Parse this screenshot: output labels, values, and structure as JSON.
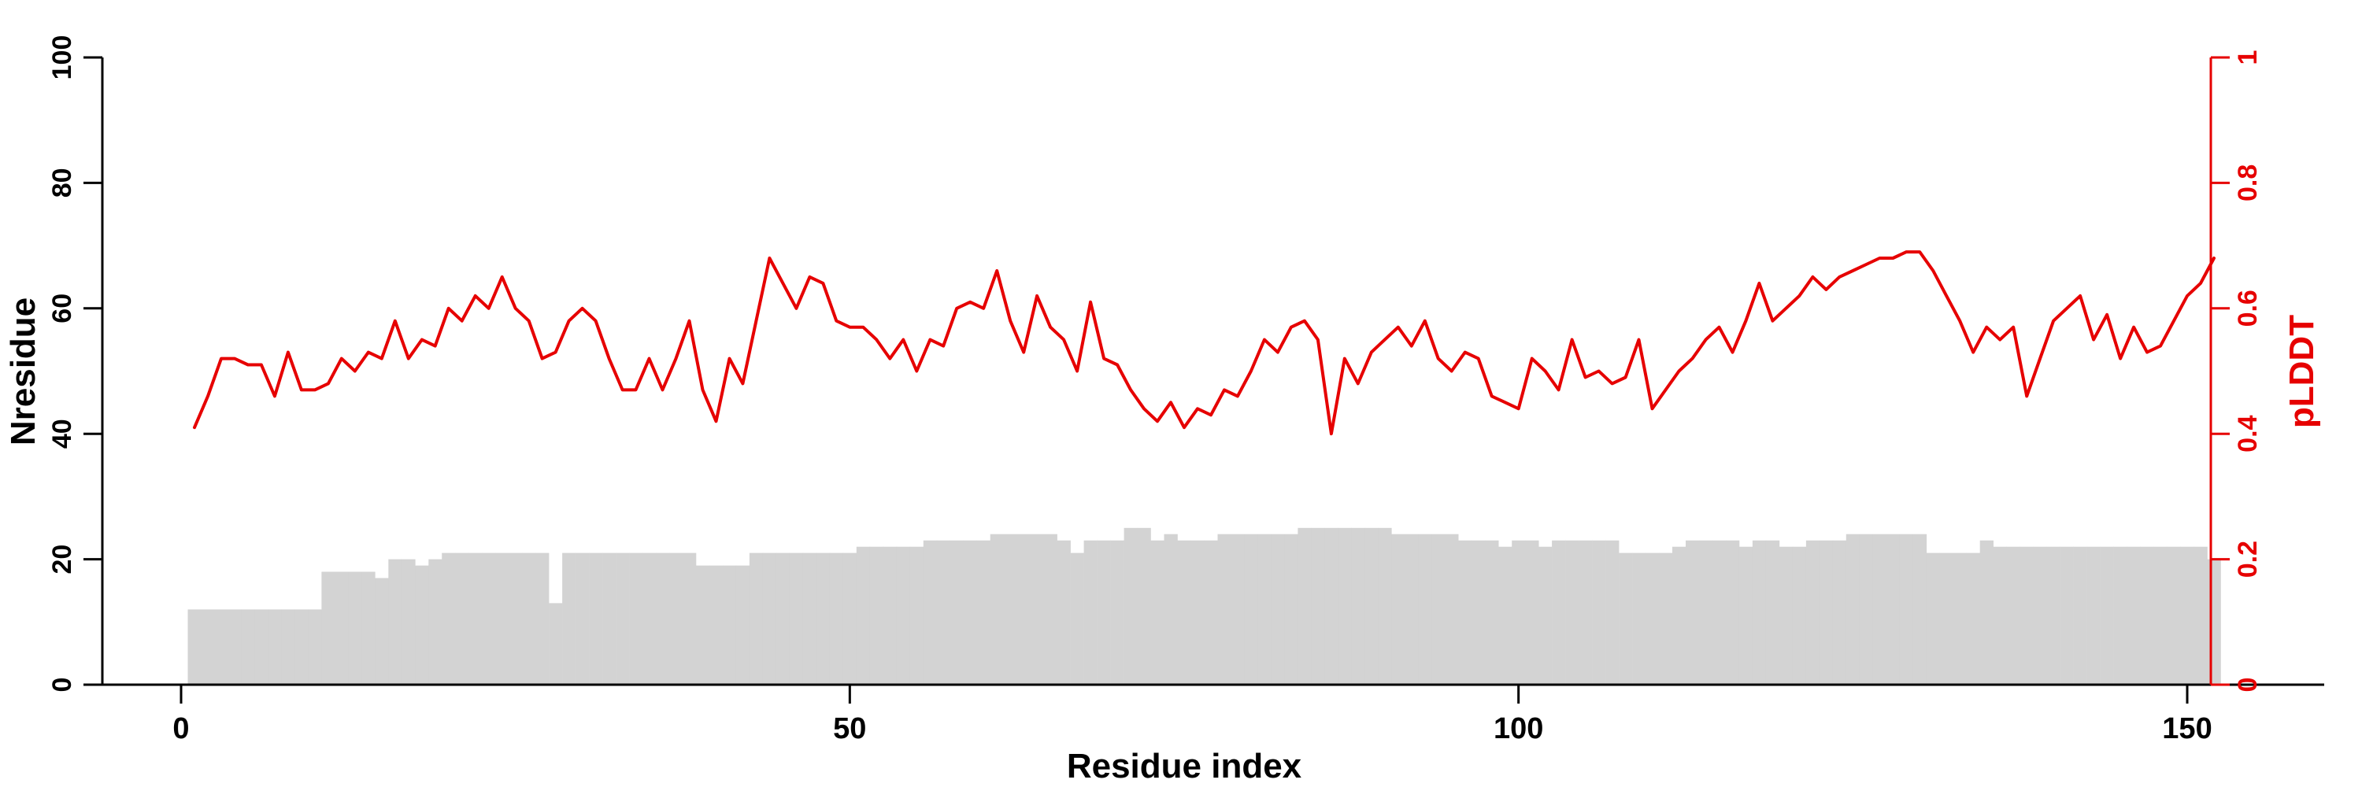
{
  "figure": {
    "background": "#ffffff"
  },
  "chart_data": {
    "type": "line+bar",
    "title": "",
    "xlabel": "Residue index",
    "ylabel_left": "Nresidue",
    "ylabel_right": "pLDDT",
    "xlim": [
      0,
      155
    ],
    "ylim_left": [
      0,
      100
    ],
    "ylim_right": [
      0,
      1
    ],
    "x_ticks": [
      0,
      50,
      100,
      150
    ],
    "left_ticks": [
      0,
      20,
      40,
      60,
      80,
      100
    ],
    "right_ticks": [
      0,
      0.2,
      0.4,
      0.6,
      0.8,
      1
    ],
    "grid": false,
    "legend": "none",
    "colors": {
      "bar_fill": "#d3d3d3",
      "line": "#e60000",
      "left_axis": "#000000",
      "right_axis": "#e60000"
    },
    "x_start": 1,
    "series": [
      {
        "name": "Nresidue",
        "type": "bar",
        "axis": "left",
        "values": [
          12,
          12,
          12,
          12,
          12,
          12,
          12,
          12,
          12,
          12,
          18,
          18,
          18,
          18,
          17,
          20,
          20,
          19,
          20,
          21,
          21,
          21,
          21,
          21,
          21,
          21,
          21,
          13,
          21,
          21,
          21,
          21,
          21,
          21,
          21,
          21,
          21,
          21,
          19,
          19,
          19,
          19,
          21,
          21,
          21,
          21,
          21,
          21,
          21,
          21,
          22,
          22,
          22,
          22,
          22,
          23,
          23,
          23,
          23,
          23,
          24,
          24,
          24,
          24,
          24,
          23,
          21,
          23,
          23,
          23,
          25,
          25,
          23,
          24,
          23,
          23,
          23,
          24,
          24,
          24,
          24,
          24,
          24,
          25,
          25,
          25,
          25,
          25,
          25,
          25,
          24,
          24,
          24,
          24,
          24,
          23,
          23,
          23,
          22,
          23,
          23,
          22,
          23,
          23,
          23,
          23,
          23,
          21,
          21,
          21,
          21,
          22,
          23,
          23,
          23,
          23,
          22,
          23,
          23,
          22,
          22,
          23,
          23,
          23,
          24,
          24,
          24,
          24,
          24,
          24,
          21,
          21,
          21,
          21,
          23,
          22,
          22,
          22,
          22,
          22,
          22,
          22,
          22,
          22,
          22,
          22,
          22,
          22,
          22,
          22,
          22,
          20
        ]
      },
      {
        "name": "pLDDT",
        "type": "line",
        "axis": "right",
        "values": [
          0.41,
          0.46,
          0.52,
          0.52,
          0.51,
          0.51,
          0.46,
          0.53,
          0.47,
          0.47,
          0.48,
          0.52,
          0.5,
          0.53,
          0.52,
          0.58,
          0.52,
          0.55,
          0.54,
          0.6,
          0.58,
          0.62,
          0.6,
          0.65,
          0.6,
          0.58,
          0.52,
          0.53,
          0.58,
          0.6,
          0.58,
          0.52,
          0.47,
          0.47,
          0.52,
          0.47,
          0.52,
          0.58,
          0.47,
          0.42,
          0.52,
          0.48,
          0.58,
          0.68,
          0.64,
          0.6,
          0.65,
          0.64,
          0.58,
          0.57,
          0.57,
          0.55,
          0.52,
          0.55,
          0.5,
          0.55,
          0.54,
          0.6,
          0.61,
          0.6,
          0.66,
          0.58,
          0.53,
          0.62,
          0.57,
          0.55,
          0.5,
          0.61,
          0.52,
          0.51,
          0.47,
          0.44,
          0.42,
          0.45,
          0.41,
          0.44,
          0.43,
          0.47,
          0.46,
          0.5,
          0.55,
          0.53,
          0.57,
          0.58,
          0.55,
          0.4,
          0.52,
          0.48,
          0.53,
          0.55,
          0.57,
          0.54,
          0.58,
          0.52,
          0.5,
          0.53,
          0.52,
          0.46,
          0.45,
          0.44,
          0.52,
          0.5,
          0.47,
          0.55,
          0.49,
          0.5,
          0.48,
          0.49,
          0.55,
          0.44,
          0.47,
          0.5,
          0.52,
          0.55,
          0.57,
          0.53,
          0.58,
          0.64,
          0.58,
          0.6,
          0.62,
          0.65,
          0.63,
          0.65,
          0.66,
          0.67,
          0.68,
          0.68,
          0.69,
          0.69,
          0.66,
          0.62,
          0.58,
          0.53,
          0.57,
          0.55,
          0.57,
          0.46,
          0.52,
          0.58,
          0.6,
          0.62,
          0.55,
          0.59,
          0.52,
          0.57,
          0.53,
          0.54,
          0.58,
          0.62,
          0.64,
          0.68
        ]
      }
    ]
  }
}
